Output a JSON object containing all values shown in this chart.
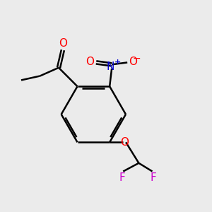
{
  "bg_color": "#ebebeb",
  "bond_color": "#000000",
  "bond_width": 1.8,
  "atom_colors": {
    "O": "#ff0000",
    "N": "#0000cd",
    "F": "#cc00cc"
  },
  "figsize": [
    3.0,
    3.0
  ],
  "dpi": 100
}
